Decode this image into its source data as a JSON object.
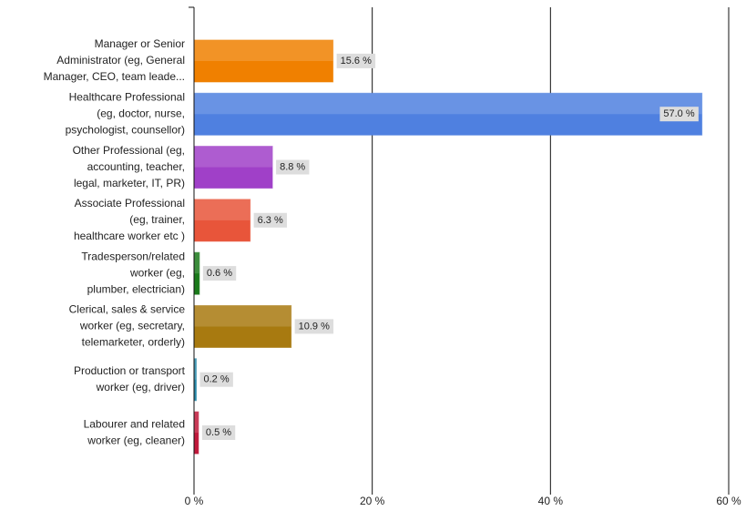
{
  "chart_data": {
    "type": "bar",
    "orientation": "horizontal",
    "categories": [
      [
        "Manager or Senior",
        "Administrator (eg, General",
        "Manager, CEO, team leade..."
      ],
      [
        "Healthcare Professional",
        "(eg, doctor, nurse,",
        "psychologist, counsellor)"
      ],
      [
        "Other Professional (eg,",
        "accounting, teacher,",
        "legal, marketer, IT, PR)"
      ],
      [
        "Associate Professional",
        "(eg, trainer,",
        "healthcare worker etc )"
      ],
      [
        "Tradesperson/related",
        "worker (eg,",
        "plumber, electrician)"
      ],
      [
        "Clerical, sales & service",
        "worker (eg, secretary,",
        "telemarketer, orderly)"
      ],
      [
        "Production or transport",
        "worker (eg, driver)"
      ],
      [
        "Labourer and related",
        "worker (eg, cleaner)"
      ]
    ],
    "values": [
      15.6,
      57.0,
      8.8,
      6.3,
      0.6,
      10.9,
      0.2,
      0.5
    ],
    "value_labels": [
      "15.6 %",
      "57.0 %",
      "8.8 %",
      "6.3 %",
      "0.6 %",
      "10.9 %",
      "0.2 %",
      "0.5 %"
    ],
    "colors": [
      "#f08000",
      "#4f80e0",
      "#a040c8",
      "#e8553a",
      "#1a7a1a",
      "#a87a10",
      "#2a8aaa",
      "#c0183a"
    ],
    "xlim": [
      0,
      60
    ],
    "xticks": [
      {
        "value": 0,
        "label": "0 %"
      },
      {
        "value": 20,
        "label": "20 %"
      },
      {
        "value": 40,
        "label": "40 %"
      },
      {
        "value": 60,
        "label": "60 %"
      }
    ],
    "grid": true
  }
}
